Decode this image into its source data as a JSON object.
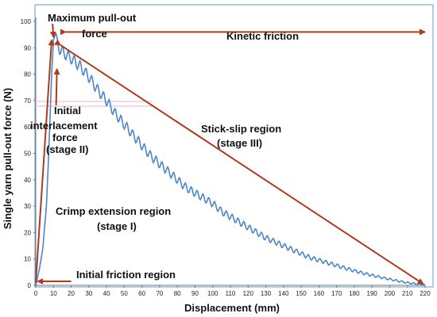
{
  "chart_data": {
    "type": "line",
    "title": "",
    "xlabel": "Displacement (mm)",
    "ylabel": "Single yarn pull-out force (N)",
    "xlim": [
      0,
      220
    ],
    "ylim": [
      0,
      100
    ],
    "xticks": [
      "0",
      "10",
      "20",
      "30",
      "40",
      "50",
      "60",
      "70",
      "80",
      "90",
      "100",
      "110",
      "120",
      "130",
      "140",
      "150",
      "160",
      "170",
      "180",
      "190",
      "200",
      "210",
      "220"
    ],
    "yticks": [
      "0",
      "10",
      "20",
      "30",
      "40",
      "50",
      "60",
      "70",
      "80",
      "90",
      "100"
    ],
    "series": [
      {
        "color": "#4a86c8",
        "x": [
          0,
          2,
          4,
          6,
          7,
          8,
          9,
          10,
          11,
          12,
          14,
          16,
          18,
          20,
          25,
          30,
          35,
          40,
          45,
          50,
          55,
          60,
          65,
          70,
          75,
          80,
          85,
          90,
          95,
          100,
          105,
          110,
          115,
          120,
          125,
          130,
          135,
          140,
          145,
          150,
          155,
          160,
          165,
          170,
          175,
          180,
          185,
          190,
          195,
          200,
          205,
          210,
          215,
          220
        ],
        "y": [
          0,
          6,
          14,
          30,
          45,
          62,
          80,
          93,
          95,
          92,
          89,
          88,
          87,
          86,
          83,
          79,
          74,
          70,
          65,
          61,
          57,
          53,
          49,
          46,
          43,
          40,
          37,
          35,
          33,
          31,
          28,
          26,
          24,
          22,
          20,
          18,
          16.5,
          15,
          13.5,
          12,
          10.5,
          9.5,
          8.5,
          7.5,
          6.5,
          5.5,
          4.6,
          3.8,
          3,
          2.3,
          1.6,
          1,
          0.5,
          0.2
        ]
      }
    ],
    "annotations": [
      "Maximum pull-out force",
      "Kinetic friction",
      "Initial interlacement force (stage II)",
      "Stick-slip region (stage III)",
      "Crimp extension region (stage I)",
      "Initial friction region"
    ]
  },
  "labels": {
    "max_line1": "Maximum pull-out",
    "max_line2": "force",
    "kinetic": "Kinetic friction",
    "init_line1": "Initial",
    "init_line2": "interlacement",
    "init_line3": "force",
    "init_line4": "(stage II)",
    "stick_line1": "Stick-slip region",
    "stick_line2": "(stage III)",
    "crimp_line1": "Crimp extension region",
    "crimp_line2": "(stage I)",
    "friction": "Initial friction region"
  },
  "colors": {
    "curve": "#4a86c8",
    "arrow": "#b03a1e",
    "pink_line": "#f0b0c8",
    "frame": "#5b9bd5"
  }
}
